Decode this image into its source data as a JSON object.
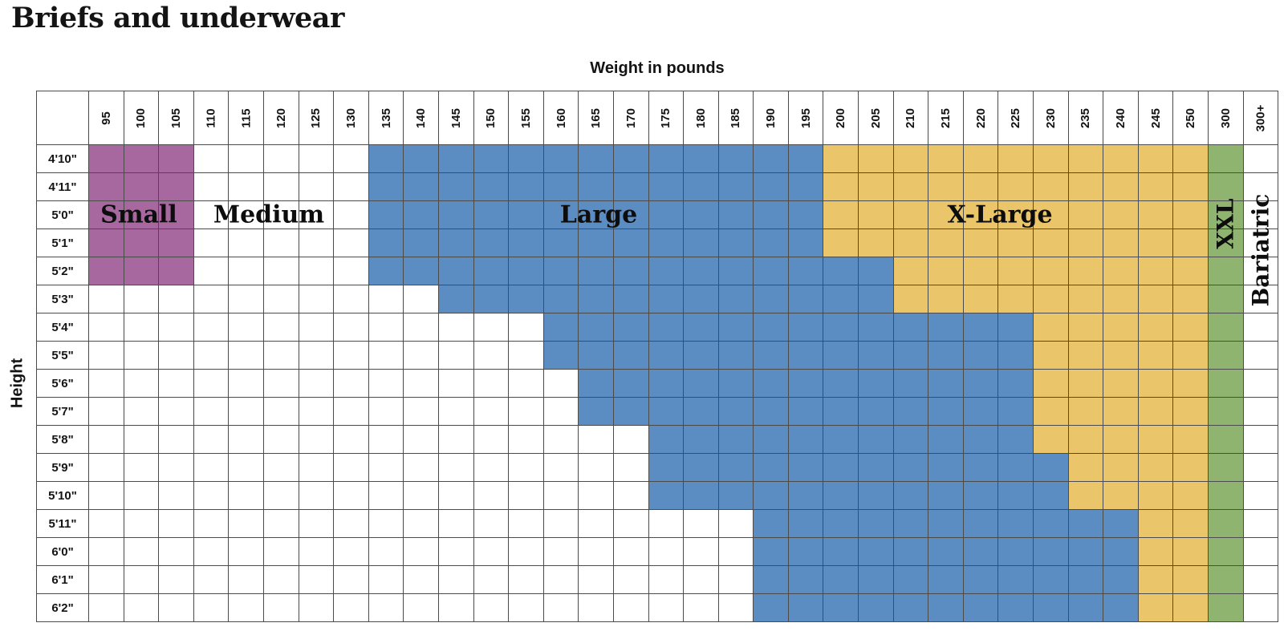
{
  "page": {
    "title": "Briefs and underwear"
  },
  "axes": {
    "x_label": "Weight in pounds",
    "y_label": "Height"
  },
  "size_labels": {
    "small": "Small",
    "medium": "Medium",
    "large": "Large",
    "xlarge": "X-Large",
    "xxl": "XXL",
    "bariatric": "Bariatric"
  },
  "colors": {
    "small": "#a7689f",
    "medium": "#ffffff",
    "large": "#5b8dc3",
    "xlarge": "#ebc56a",
    "xxl": "#8fb470",
    "bariatric": "#ffffff",
    "grid_line": "#4b4b4b",
    "text": "#141414",
    "background": "#ffffff"
  },
  "chart_data": {
    "type": "heatmap",
    "title": "Briefs and underwear",
    "xlabel": "Weight in pounds",
    "ylabel": "Height",
    "grid": true,
    "weights": [
      "95",
      "100",
      "105",
      "110",
      "115",
      "120",
      "125",
      "130",
      "135",
      "140",
      "145",
      "150",
      "155",
      "160",
      "165",
      "170",
      "175",
      "180",
      "185",
      "190",
      "195",
      "200",
      "205",
      "210",
      "215",
      "220",
      "225",
      "230",
      "235",
      "240",
      "245",
      "250",
      "300",
      "300+"
    ],
    "heights": [
      "4'10\"",
      "4'11\"",
      "5'0\"",
      "5'1\"",
      "5'2\"",
      "5'3\"",
      "5'4\"",
      "5'5\"",
      "5'6\"",
      "5'7\"",
      "5'8\"",
      "5'9\"",
      "5'10\"",
      "5'11\"",
      "6'0\"",
      "6'1\"",
      "6'2\""
    ],
    "legend": [
      {
        "label": "Small",
        "color": "#a7689f"
      },
      {
        "label": "Medium",
        "color": "#ffffff"
      },
      {
        "label": "Large",
        "color": "#5b8dc3"
      },
      {
        "label": "X-Large",
        "color": "#ebc56a"
      },
      {
        "label": "XXL",
        "color": "#8fb470"
      },
      {
        "label": "Bariatric",
        "color": "#ffffff"
      }
    ],
    "rows": [
      {
        "height": "4'10\"",
        "small": [
          0,
          2
        ],
        "large": [
          8,
          20
        ],
        "xlarge": [
          21,
          31
        ],
        "xxl": [
          32,
          32
        ],
        "bariatric": [
          33,
          33
        ]
      },
      {
        "height": "4'11\"",
        "small": [
          0,
          2
        ],
        "large": [
          8,
          20
        ],
        "xlarge": [
          21,
          31
        ],
        "xxl": [
          32,
          32
        ],
        "bariatric": [
          33,
          33
        ]
      },
      {
        "height": "5'0\"",
        "small": [
          0,
          2
        ],
        "large": [
          8,
          20
        ],
        "xlarge": [
          21,
          31
        ],
        "xxl": [
          32,
          32
        ],
        "bariatric": [
          33,
          33
        ]
      },
      {
        "height": "5'1\"",
        "small": [
          0,
          2
        ],
        "large": [
          8,
          20
        ],
        "xlarge": [
          21,
          31
        ],
        "xxl": [
          32,
          32
        ],
        "bariatric": [
          33,
          33
        ]
      },
      {
        "height": "5'2\"",
        "small": [
          0,
          2
        ],
        "large": [
          8,
          22
        ],
        "xlarge": [
          23,
          31
        ],
        "xxl": [
          32,
          32
        ],
        "bariatric": [
          33,
          33
        ]
      },
      {
        "height": "5'3\"",
        "small": null,
        "large": [
          10,
          22
        ],
        "xlarge": [
          23,
          31
        ],
        "xxl": [
          32,
          32
        ],
        "bariatric": [
          33,
          33
        ]
      },
      {
        "height": "5'4\"",
        "small": null,
        "large": [
          13,
          26
        ],
        "xlarge": [
          27,
          31
        ],
        "xxl": [
          32,
          32
        ],
        "bariatric": [
          33,
          33
        ]
      },
      {
        "height": "5'5\"",
        "small": null,
        "large": [
          13,
          26
        ],
        "xlarge": [
          27,
          31
        ],
        "xxl": [
          32,
          32
        ],
        "bariatric": [
          33,
          33
        ]
      },
      {
        "height": "5'6\"",
        "small": null,
        "large": [
          14,
          26
        ],
        "xlarge": [
          27,
          31
        ],
        "xxl": [
          32,
          32
        ],
        "bariatric": [
          33,
          33
        ]
      },
      {
        "height": "5'7\"",
        "small": null,
        "large": [
          14,
          26
        ],
        "xlarge": [
          27,
          31
        ],
        "xxl": [
          32,
          32
        ],
        "bariatric": [
          33,
          33
        ]
      },
      {
        "height": "5'8\"",
        "small": null,
        "large": [
          16,
          26
        ],
        "xlarge": [
          27,
          31
        ],
        "xxl": [
          32,
          32
        ],
        "bariatric": [
          33,
          33
        ]
      },
      {
        "height": "5'9\"",
        "small": null,
        "large": [
          16,
          27
        ],
        "xlarge": [
          28,
          31
        ],
        "xxl": [
          32,
          32
        ],
        "bariatric": [
          33,
          33
        ]
      },
      {
        "height": "5'10\"",
        "small": null,
        "large": [
          16,
          27
        ],
        "xlarge": [
          28,
          31
        ],
        "xxl": [
          32,
          32
        ],
        "bariatric": [
          33,
          33
        ]
      },
      {
        "height": "5'11\"",
        "small": null,
        "large": [
          19,
          29
        ],
        "xlarge": [
          30,
          31
        ],
        "xxl": [
          32,
          32
        ],
        "bariatric": [
          33,
          33
        ]
      },
      {
        "height": "6'0\"",
        "small": null,
        "large": [
          19,
          29
        ],
        "xlarge": [
          30,
          31
        ],
        "xxl": [
          32,
          32
        ],
        "bariatric": [
          33,
          33
        ]
      },
      {
        "height": "6'1\"",
        "small": null,
        "large": [
          19,
          29
        ],
        "xlarge": [
          30,
          31
        ],
        "xxl": [
          32,
          32
        ],
        "bariatric": [
          33,
          33
        ]
      },
      {
        "height": "6'2\"",
        "small": null,
        "large": [
          19,
          29
        ],
        "xlarge": [
          30,
          31
        ],
        "xxl": [
          32,
          32
        ],
        "bariatric": [
          33,
          33
        ]
      }
    ]
  }
}
